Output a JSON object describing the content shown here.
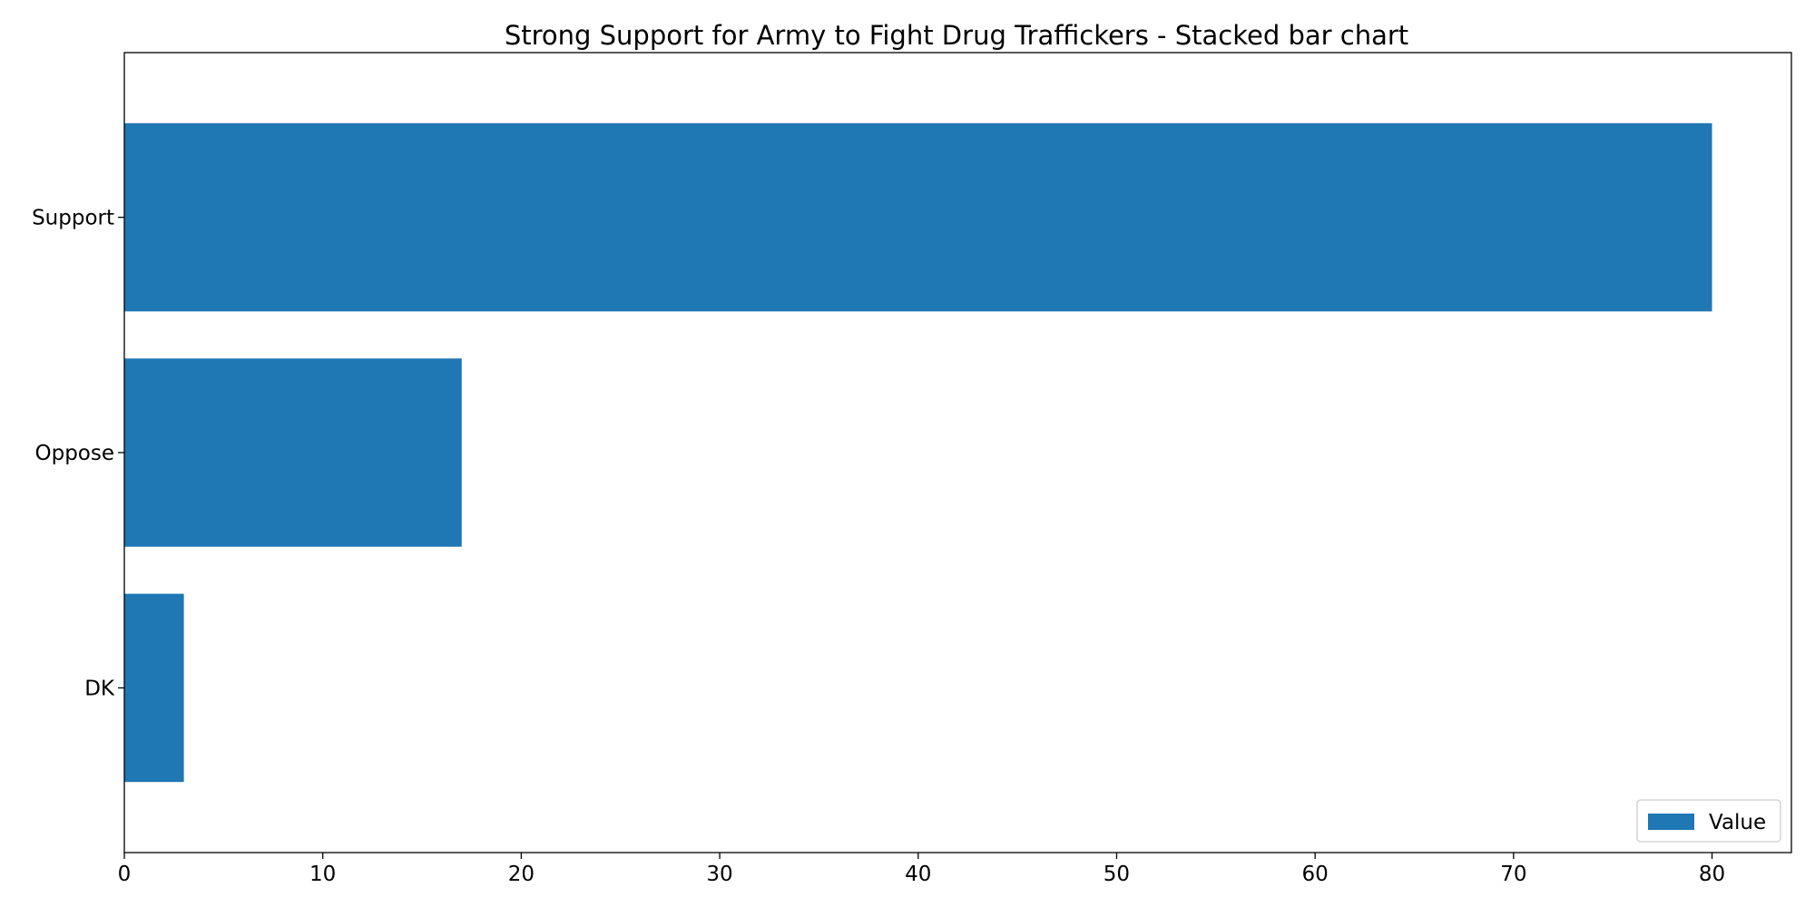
{
  "chart_data": {
    "type": "bar",
    "orientation": "horizontal",
    "title": "Strong Support for Army to Fight Drug Traffickers  - Stacked bar chart",
    "xlabel": "",
    "ylabel": "",
    "categories": [
      "Support",
      "Oppose",
      "DK"
    ],
    "series": [
      {
        "name": "Value",
        "values": [
          80,
          17,
          3
        ],
        "color": "#1f77b4"
      }
    ],
    "xlim": [
      0,
      84
    ],
    "xticks": [
      0,
      10,
      20,
      30,
      40,
      50,
      60,
      70,
      80
    ],
    "grid": false,
    "legend_position": "lower-right"
  }
}
